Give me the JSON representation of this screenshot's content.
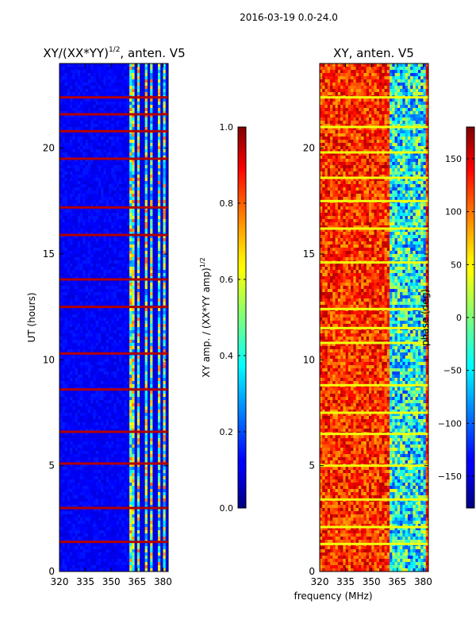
{
  "figure_title": "2016-03-19 0.0-24.0",
  "chart_data": [
    {
      "type": "heatmap",
      "title": "XY/(XX*YY)",
      "title_exponent": "1/2",
      "title_suffix": ", anten. V5",
      "xlabel": "frequency (MHz)",
      "ylabel": "UT (hours)",
      "xlim": [
        320,
        383
      ],
      "ylim": [
        0,
        24
      ],
      "xticks": [
        320,
        335,
        350,
        365,
        380
      ],
      "yticks": [
        0,
        5,
        10,
        15,
        20
      ],
      "colormap": "jet",
      "colorbar": {
        "label": "XY amp. / (XX*YY amp)",
        "label_exponent": "1/2",
        "range": [
          0.0,
          1.0
        ],
        "ticks": [
          "0.0",
          "0.2",
          "0.4",
          "0.6",
          "0.8",
          "1.0"
        ],
        "tick_values": [
          0.0,
          0.2,
          0.4,
          0.6,
          0.8,
          1.0
        ]
      },
      "background_value": 0.12,
      "active_band_mhz": [
        360,
        382
      ],
      "active_band_value": 0.5,
      "channel_gaps_mhz": [
        364.5,
        368.0,
        371.5,
        375.5,
        379.0
      ],
      "flagged_rows_ut": [
        22.4,
        21.6,
        20.8,
        19.5,
        17.2,
        15.9,
        13.8,
        12.5,
        10.3,
        8.6,
        6.6,
        5.1,
        3.0,
        1.4
      ],
      "flagged_value": 0.95
    },
    {
      "type": "heatmap",
      "title": "XY, anten. V5",
      "xlabel": "frequency (MHz)",
      "ylabel": "",
      "xlim": [
        320,
        383
      ],
      "ylim": [
        0,
        24
      ],
      "xticks": [
        320,
        335,
        350,
        365,
        380
      ],
      "yticks": [
        0,
        5,
        10,
        15,
        20
      ],
      "colormap": "jet",
      "colorbar": {
        "label": "phase (deg)",
        "range": [
          -180,
          180
        ],
        "ticks": [
          "150",
          "100",
          "50",
          "0",
          "−50",
          "−100",
          "−150"
        ],
        "tick_values": [
          150,
          100,
          50,
          0,
          -50,
          -100,
          -150
        ]
      },
      "background_value": 120,
      "cool_band_mhz": [
        360,
        382
      ],
      "cool_band_value": -40,
      "flagged_rows_ut": [
        22.4,
        21.0,
        19.8,
        18.6,
        17.5,
        16.2,
        14.6,
        12.4,
        11.5,
        10.8,
        8.8,
        7.5,
        6.5,
        5.0,
        3.4,
        2.1,
        1.3
      ],
      "flagged_value": 40
    }
  ],
  "shared_xlabel": "frequency (MHz)"
}
